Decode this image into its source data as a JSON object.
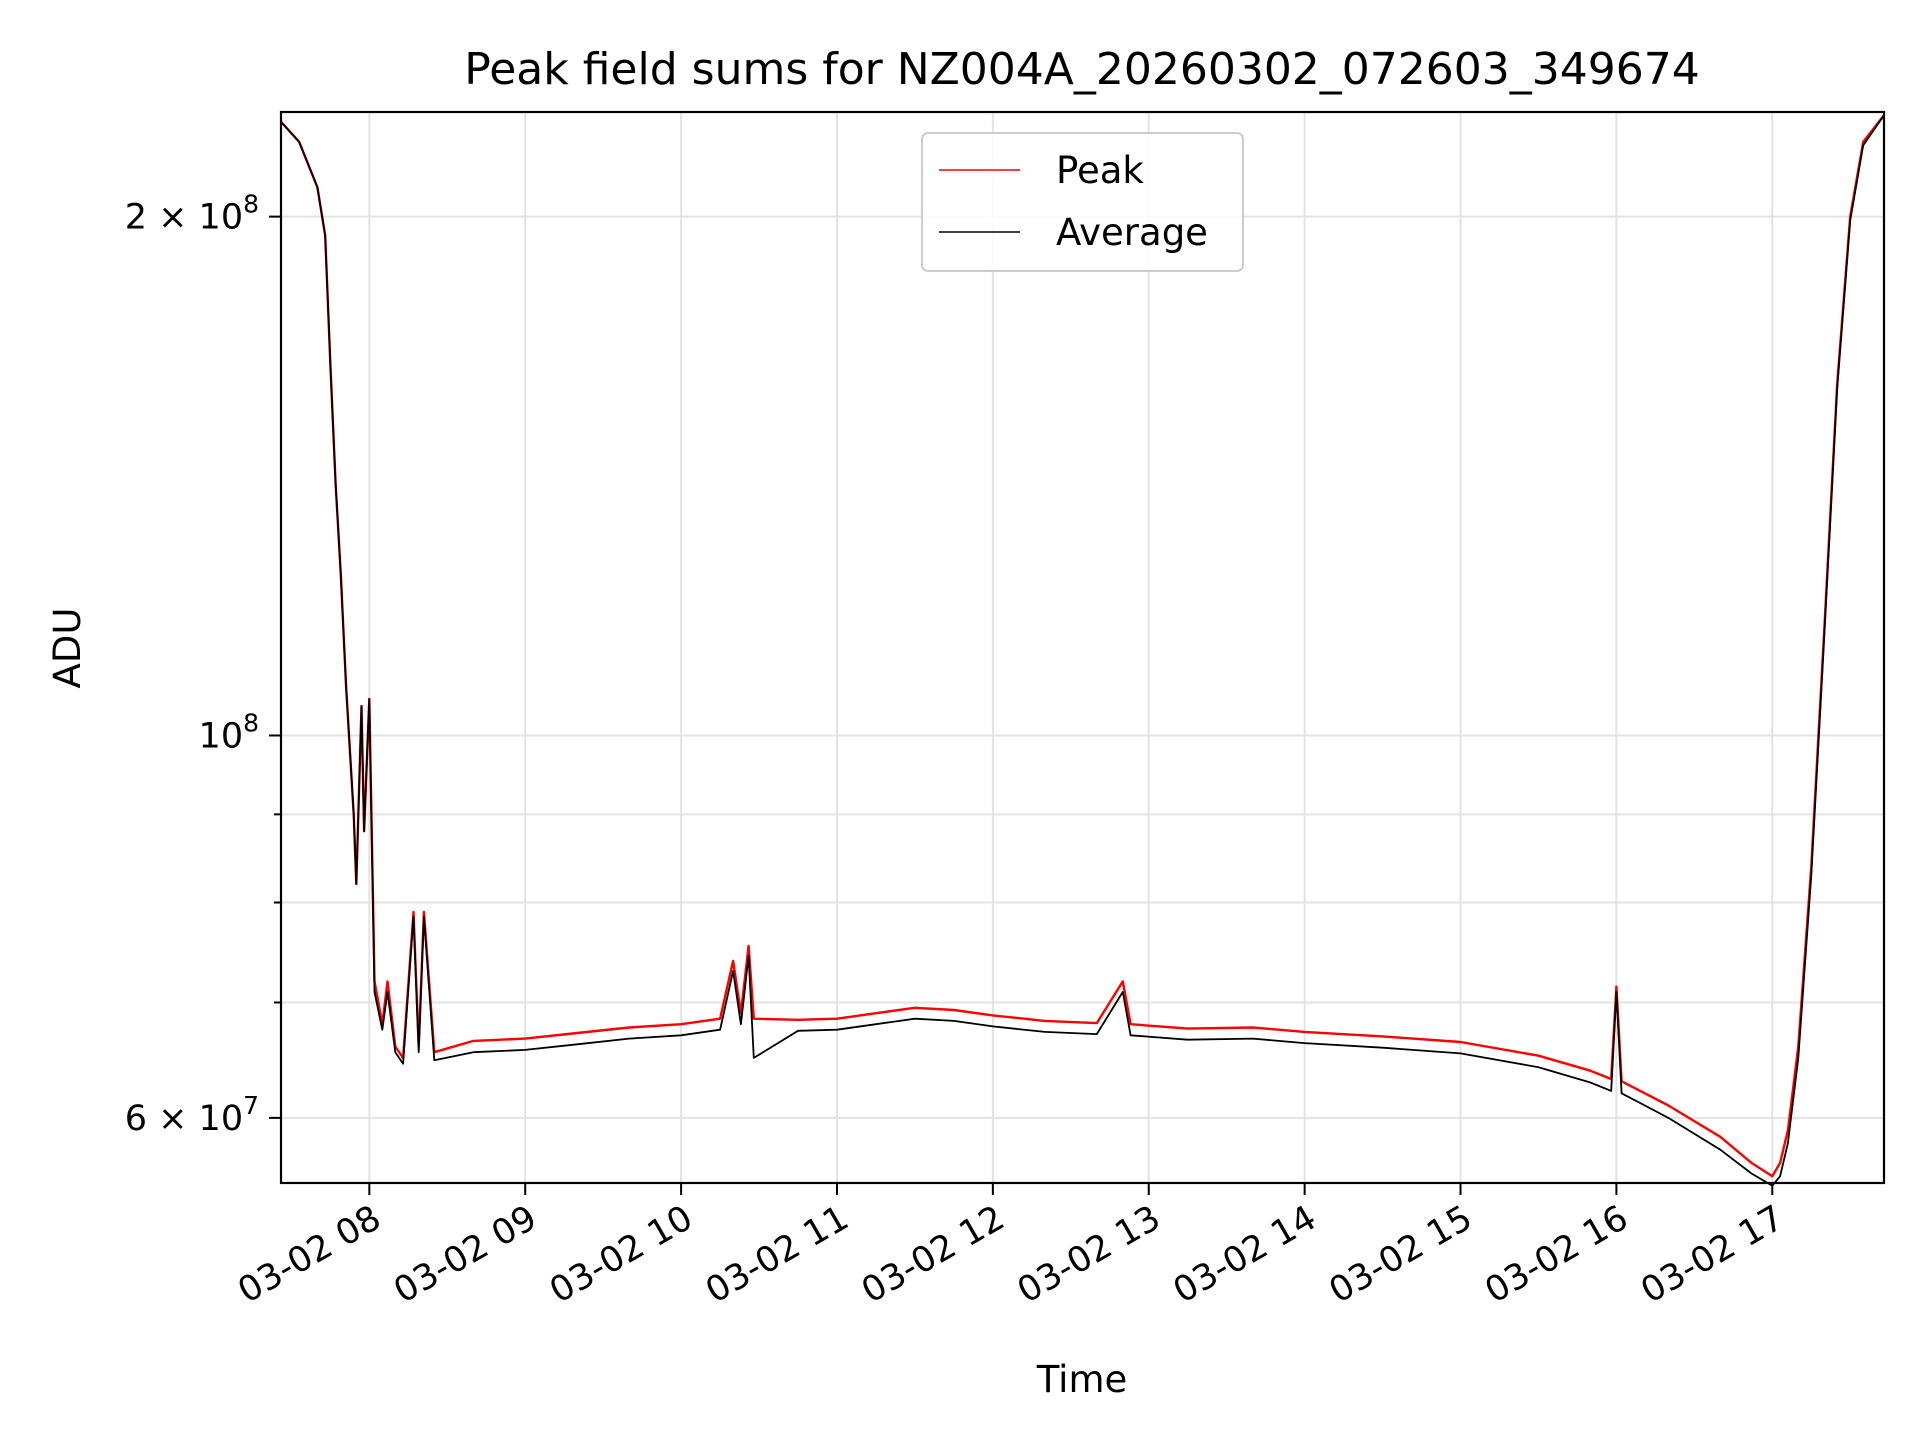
{
  "chart_data": {
    "type": "line",
    "title": "Peak field sums for NZ004A_20260302_072603_349674",
    "xlabel": "Time",
    "ylabel": "ADU",
    "y_scale": "log",
    "xlim": [
      "2026-03-02 07:26",
      "2026-03-02 17:43"
    ],
    "ylim": [
      55000000,
      230000000
    ],
    "grid": true,
    "legend_position": "top-center",
    "x_ticks": [
      {
        "time": "2026-03-02 08:00",
        "label": "03-02 08"
      },
      {
        "time": "2026-03-02 09:00",
        "label": "03-02 09"
      },
      {
        "time": "2026-03-02 10:00",
        "label": "03-02 10"
      },
      {
        "time": "2026-03-02 11:00",
        "label": "03-02 11"
      },
      {
        "time": "2026-03-02 12:00",
        "label": "03-02 12"
      },
      {
        "time": "2026-03-02 13:00",
        "label": "03-02 13"
      },
      {
        "time": "2026-03-02 14:00",
        "label": "03-02 14"
      },
      {
        "time": "2026-03-02 15:00",
        "label": "03-02 15"
      },
      {
        "time": "2026-03-02 16:00",
        "label": "03-02 16"
      },
      {
        "time": "2026-03-02 17:00",
        "label": "03-02 17"
      }
    ],
    "y_ticks_major": [
      {
        "value": 60000000,
        "mantissa": "6",
        "exponent": "7"
      },
      {
        "value": 100000000,
        "mantissa": "",
        "exponent": "8"
      },
      {
        "value": 200000000,
        "mantissa": "2",
        "exponent": "8"
      }
    ],
    "y_ticks_minor": [
      70000000,
      80000000,
      90000000
    ],
    "series": [
      {
        "name": "Peak",
        "color": "#ff0000",
        "points": [
          [
            "2026-03-02 07:26",
            227000000
          ],
          [
            "2026-03-02 07:33",
            221000000
          ],
          [
            "2026-03-02 07:40",
            208000000
          ],
          [
            "2026-03-02 07:43",
            195000000
          ],
          [
            "2026-03-02 07:45",
            164000000
          ],
          [
            "2026-03-02 07:47",
            140000000
          ],
          [
            "2026-03-02 07:49",
            124000000
          ],
          [
            "2026-03-02 07:51",
            107000000
          ],
          [
            "2026-03-02 07:54",
            90000000
          ],
          [
            "2026-03-02 07:55",
            82000000
          ],
          [
            "2026-03-02 07:57",
            104000000
          ],
          [
            "2026-03-02 07:58",
            88000000
          ],
          [
            "2026-03-02 08:00",
            105000000
          ],
          [
            "2026-03-02 08:02",
            72000000
          ],
          [
            "2026-03-02 08:05",
            68000000
          ],
          [
            "2026-03-02 08:07",
            72000000
          ],
          [
            "2026-03-02 08:10",
            66000000
          ],
          [
            "2026-03-02 08:13",
            65000000
          ],
          [
            "2026-03-02 08:17",
            79000000
          ],
          [
            "2026-03-02 08:19",
            66000000
          ],
          [
            "2026-03-02 08:21",
            79000000
          ],
          [
            "2026-03-02 08:25",
            65500000
          ],
          [
            "2026-03-02 08:40",
            66500000
          ],
          [
            "2026-03-02 09:00",
            66700000
          ],
          [
            "2026-03-02 09:20",
            67200000
          ],
          [
            "2026-03-02 09:40",
            67700000
          ],
          [
            "2026-03-02 10:00",
            68000000
          ],
          [
            "2026-03-02 10:15",
            68500000
          ],
          [
            "2026-03-02 10:20",
            74000000
          ],
          [
            "2026-03-02 10:23",
            69000000
          ],
          [
            "2026-03-02 10:26",
            75500000
          ],
          [
            "2026-03-02 10:28",
            68500000
          ],
          [
            "2026-03-02 10:45",
            68400000
          ],
          [
            "2026-03-02 11:00",
            68500000
          ],
          [
            "2026-03-02 11:15",
            69000000
          ],
          [
            "2026-03-02 11:30",
            69500000
          ],
          [
            "2026-03-02 11:45",
            69300000
          ],
          [
            "2026-03-02 12:00",
            68800000
          ],
          [
            "2026-03-02 12:20",
            68300000
          ],
          [
            "2026-03-02 12:40",
            68100000
          ],
          [
            "2026-03-02 12:50",
            72000000
          ],
          [
            "2026-03-02 12:53",
            68000000
          ],
          [
            "2026-03-02 13:15",
            67600000
          ],
          [
            "2026-03-02 13:40",
            67700000
          ],
          [
            "2026-03-02 14:00",
            67300000
          ],
          [
            "2026-03-02 14:30",
            66900000
          ],
          [
            "2026-03-02 15:00",
            66400000
          ],
          [
            "2026-03-02 15:30",
            65200000
          ],
          [
            "2026-03-02 15:50",
            63900000
          ],
          [
            "2026-03-02 15:58",
            63200000
          ],
          [
            "2026-03-02 16:00",
            71500000
          ],
          [
            "2026-03-02 16:02",
            63000000
          ],
          [
            "2026-03-02 16:20",
            61000000
          ],
          [
            "2026-03-02 16:40",
            58500000
          ],
          [
            "2026-03-02 16:52",
            56500000
          ],
          [
            "2026-03-02 17:00",
            55500000
          ],
          [
            "2026-03-02 17:03",
            56500000
          ],
          [
            "2026-03-02 17:06",
            59000000
          ],
          [
            "2026-03-02 17:10",
            66000000
          ],
          [
            "2026-03-02 17:15",
            84000000
          ],
          [
            "2026-03-02 17:20",
            115000000
          ],
          [
            "2026-03-02 17:25",
            160000000
          ],
          [
            "2026-03-02 17:30",
            200000000
          ],
          [
            "2026-03-02 17:35",
            221000000
          ],
          [
            "2026-03-02 17:43",
            229000000
          ]
        ]
      },
      {
        "name": "Average",
        "color": "#000000",
        "points": [
          [
            "2026-03-02 07:26",
            227000000
          ],
          [
            "2026-03-02 07:33",
            221000000
          ],
          [
            "2026-03-02 07:40",
            208000000
          ],
          [
            "2026-03-02 07:43",
            195000000
          ],
          [
            "2026-03-02 07:45",
            164000000
          ],
          [
            "2026-03-02 07:47",
            140000000
          ],
          [
            "2026-03-02 07:49",
            124000000
          ],
          [
            "2026-03-02 07:51",
            107000000
          ],
          [
            "2026-03-02 07:54",
            90000000
          ],
          [
            "2026-03-02 07:55",
            82000000
          ],
          [
            "2026-03-02 07:57",
            104000000
          ],
          [
            "2026-03-02 07:58",
            88000000
          ],
          [
            "2026-03-02 08:00",
            105000000
          ],
          [
            "2026-03-02 08:02",
            71000000
          ],
          [
            "2026-03-02 08:05",
            67500000
          ],
          [
            "2026-03-02 08:07",
            71000000
          ],
          [
            "2026-03-02 08:10",
            65500000
          ],
          [
            "2026-03-02 08:13",
            64500000
          ],
          [
            "2026-03-02 08:17",
            78500000
          ],
          [
            "2026-03-02 08:19",
            65500000
          ],
          [
            "2026-03-02 08:21",
            78500000
          ],
          [
            "2026-03-02 08:25",
            64800000
          ],
          [
            "2026-03-02 08:40",
            65500000
          ],
          [
            "2026-03-02 09:00",
            65700000
          ],
          [
            "2026-03-02 09:20",
            66200000
          ],
          [
            "2026-03-02 09:40",
            66700000
          ],
          [
            "2026-03-02 10:00",
            67000000
          ],
          [
            "2026-03-02 10:15",
            67500000
          ],
          [
            "2026-03-02 10:20",
            73000000
          ],
          [
            "2026-03-02 10:23",
            68000000
          ],
          [
            "2026-03-02 10:26",
            74500000
          ],
          [
            "2026-03-02 10:28",
            65000000
          ],
          [
            "2026-03-02 10:45",
            67400000
          ],
          [
            "2026-03-02 11:00",
            67500000
          ],
          [
            "2026-03-02 11:15",
            68000000
          ],
          [
            "2026-03-02 11:30",
            68500000
          ],
          [
            "2026-03-02 11:45",
            68300000
          ],
          [
            "2026-03-02 12:00",
            67800000
          ],
          [
            "2026-03-02 12:20",
            67300000
          ],
          [
            "2026-03-02 12:40",
            67100000
          ],
          [
            "2026-03-02 12:50",
            71000000
          ],
          [
            "2026-03-02 12:53",
            67000000
          ],
          [
            "2026-03-02 13:15",
            66600000
          ],
          [
            "2026-03-02 13:40",
            66700000
          ],
          [
            "2026-03-02 14:00",
            66300000
          ],
          [
            "2026-03-02 14:30",
            65900000
          ],
          [
            "2026-03-02 15:00",
            65400000
          ],
          [
            "2026-03-02 15:30",
            64200000
          ],
          [
            "2026-03-02 15:50",
            62900000
          ],
          [
            "2026-03-02 15:58",
            62200000
          ],
          [
            "2026-03-02 16:00",
            71000000
          ],
          [
            "2026-03-02 16:02",
            62000000
          ],
          [
            "2026-03-02 16:20",
            60000000
          ],
          [
            "2026-03-02 16:40",
            57500000
          ],
          [
            "2026-03-02 16:52",
            55700000
          ],
          [
            "2026-03-02 17:00",
            54800000
          ],
          [
            "2026-03-02 17:03",
            55500000
          ],
          [
            "2026-03-02 17:06",
            58000000
          ],
          [
            "2026-03-02 17:10",
            65000000
          ],
          [
            "2026-03-02 17:15",
            83000000
          ],
          [
            "2026-03-02 17:20",
            114000000
          ],
          [
            "2026-03-02 17:25",
            159000000
          ],
          [
            "2026-03-02 17:30",
            199000000
          ],
          [
            "2026-03-02 17:35",
            220000000
          ],
          [
            "2026-03-02 17:43",
            229000000
          ]
        ]
      }
    ]
  }
}
